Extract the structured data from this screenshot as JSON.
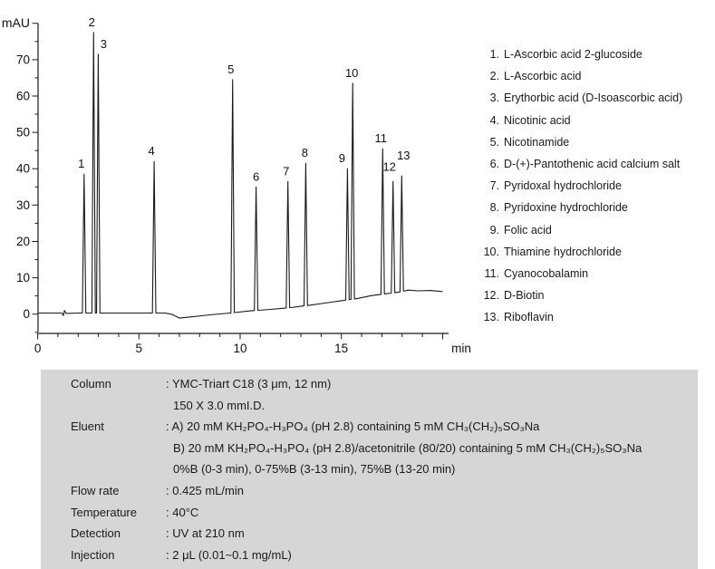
{
  "chart_data": {
    "type": "line",
    "title": "",
    "ylabel": "mAU",
    "xlabel_unit": "min",
    "xlim": [
      0,
      20
    ],
    "ylim": [
      -5,
      80
    ],
    "x_major_ticks": [
      0,
      5,
      10,
      15
    ],
    "x_minor_step": 1,
    "y_major_ticks": [
      0,
      10,
      20,
      30,
      40,
      50,
      60,
      70
    ],
    "y_minor_step": 5,
    "grid": false,
    "line_color": "#1a1a1a",
    "baseline": [
      [
        0,
        0.3
      ],
      [
        1.2,
        0.3
      ],
      [
        1.27,
        -0.4
      ],
      [
        1.32,
        1.0
      ],
      [
        1.4,
        0.2
      ],
      [
        2.0,
        0.3
      ],
      [
        6.3,
        0.3
      ],
      [
        6.65,
        -0.1
      ],
      [
        7.0,
        -1.1
      ],
      [
        7.5,
        -0.8
      ],
      [
        8.5,
        -0.2
      ],
      [
        9.5,
        0.3
      ],
      [
        10.5,
        0.9
      ],
      [
        11.5,
        1.3
      ],
      [
        12.5,
        1.8
      ],
      [
        13.5,
        2.5
      ],
      [
        14.5,
        3.3
      ],
      [
        15.0,
        3.7
      ],
      [
        15.8,
        4.3
      ],
      [
        16.5,
        5.1
      ],
      [
        17.2,
        5.6
      ],
      [
        17.8,
        6.0
      ],
      [
        18.3,
        6.6
      ],
      [
        18.8,
        6.4
      ],
      [
        19.4,
        6.5
      ],
      [
        20.0,
        6.2
      ]
    ],
    "peaks": [
      {
        "n": "1",
        "rt": 2.29,
        "apex": 38.5,
        "dx": -3,
        "dy": 0
      },
      {
        "n": "2",
        "rt": 2.76,
        "apex": 77.5,
        "dx": -2,
        "dy": 0
      },
      {
        "n": "3",
        "rt": 2.99,
        "apex": 71.5,
        "dx": 6,
        "dy": 0
      },
      {
        "n": "4",
        "rt": 5.75,
        "apex": 42.0,
        "dx": -3,
        "dy": 0
      },
      {
        "n": "5",
        "rt": 9.63,
        "apex": 64.5,
        "dx": -2,
        "dy": 0
      },
      {
        "n": "6",
        "rt": 10.79,
        "apex": 35.0,
        "dx": 0,
        "dy": 0
      },
      {
        "n": "7",
        "rt": 12.36,
        "apex": 36.5,
        "dx": -2,
        "dy": 0
      },
      {
        "n": "8",
        "rt": 13.24,
        "apex": 41.5,
        "dx": -1,
        "dy": 0
      },
      {
        "n": "9",
        "rt": 15.3,
        "apex": 40.0,
        "dx": -6,
        "dy": 0
      },
      {
        "n": "10",
        "rt": 15.56,
        "apex": 63.5,
        "dx": -1,
        "dy": 0
      },
      {
        "n": "11",
        "rt": 17.04,
        "apex": 45.5,
        "dx": -2,
        "dy": 0
      },
      {
        "n": "12",
        "rt": 17.55,
        "apex": 36.5,
        "dx": -4,
        "dy": -5
      },
      {
        "n": "13",
        "rt": 17.98,
        "apex": 38.0,
        "dx": 2,
        "dy": -11
      }
    ]
  },
  "legend": {
    "items": [
      {
        "num": "1.",
        "name": "L-Ascorbic acid 2-glucoside"
      },
      {
        "num": "2.",
        "name": "L-Ascorbic acid"
      },
      {
        "num": "3.",
        "name": "Erythorbic acid (D-Isoascorbic acid)"
      },
      {
        "num": "4.",
        "name": "Nicotinic acid"
      },
      {
        "num": "5.",
        "name": "Nicotinamide"
      },
      {
        "num": "6.",
        "name": "D-(+)-Pantothenic acid calcium salt"
      },
      {
        "num": "7.",
        "name": "Pyridoxal hydrochloride"
      },
      {
        "num": "8.",
        "name": "Pyridoxine hydrochloride"
      },
      {
        "num": "9.",
        "name": "Folic acid"
      },
      {
        "num": "10.",
        "name": "Thiamine hydrochloride"
      },
      {
        "num": "11.",
        "name": "Cyanocobalamin"
      },
      {
        "num": "12.",
        "name": "D-Biotin"
      },
      {
        "num": "13.",
        "name": "Riboflavin"
      }
    ]
  },
  "conditions": {
    "background": "#d6d6d6",
    "rows": [
      {
        "label": "Column",
        "lines": [
          ": YMC-Triart C18 (3 μm, 12 nm)",
          "150 X 3.0 mmI.D."
        ]
      },
      {
        "label": "Eluent",
        "lines": [
          ": A) 20 mM KH₂PO₄-H₃PO₄ (pH 2.8) containing 5 mM CH₃(CH₂)₅SO₃Na",
          "B) 20 mM KH₂PO₄-H₃PO₄ (pH 2.8)/acetonitrile (80/20) containing 5 mM CH₃(CH₂)₅SO₃Na",
          "0%B (0-3 min), 0-75%B (3-13 min), 75%B (13-20 min)"
        ]
      },
      {
        "label": "Flow rate",
        "lines": [
          ": 0.425 mL/min"
        ]
      },
      {
        "label": "Temperature",
        "lines": [
          ": 40°C"
        ]
      },
      {
        "label": "Detection",
        "lines": [
          ": UV at 210 nm"
        ]
      },
      {
        "label": "Injection",
        "lines": [
          ": 2 μL (0.01~0.1 mg/mL)"
        ]
      }
    ]
  }
}
